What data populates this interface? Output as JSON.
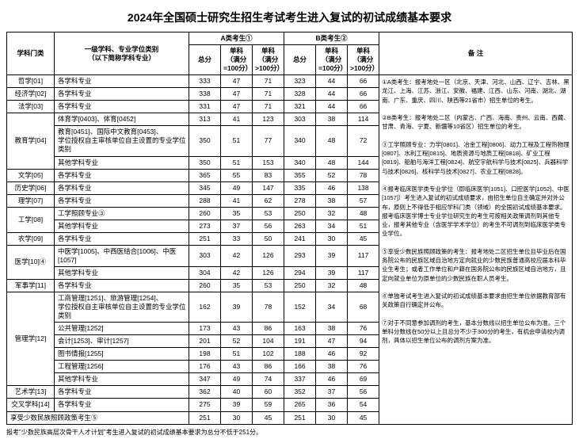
{
  "title": "2024年全国硕士研究生招生考试考生进入复试的初试成绩基本要求",
  "headers": {
    "col1": "学科门类",
    "col2": "一级学科、专业学位类别\n（以下简称学科专业）",
    "groupA": "A类考生①",
    "groupB": "B类考生②",
    "notes": "备  注",
    "total": "总分",
    "single1": "单科\n（满分=100分）",
    "single2": "单科\n（满分>100分）"
  },
  "rows": [
    {
      "cat": "哲学[01]",
      "sub": "各学科专业",
      "a": [
        333,
        47,
        71
      ],
      "b": [
        323,
        44,
        66
      ]
    },
    {
      "cat": "经济学[02]",
      "sub": "各学科专业",
      "a": [
        338,
        47,
        71
      ],
      "b": [
        328,
        44,
        66
      ]
    },
    {
      "cat": "法学[03]",
      "sub": "各学科专业",
      "a": [
        331,
        47,
        71
      ],
      "b": [
        321,
        44,
        66
      ]
    },
    {
      "cat": "教育学[04]",
      "sub": "体育学[0403]、体育[0452]",
      "a": [
        313,
        41,
        123
      ],
      "b": [
        303,
        38,
        114
      ],
      "rowspan": 3
    },
    {
      "sub": "教育[0451]、国际中文教育[0453]、\n学位授权自主审核单位自主设置的专业学位类别",
      "a": [
        350,
        51,
        77
      ],
      "b": [
        340,
        48,
        72
      ]
    },
    {
      "sub": "其他学科专业",
      "a": [
        350,
        51,
        153
      ],
      "b": [
        340,
        48,
        144
      ]
    },
    {
      "cat": "文学[05]",
      "sub": "各学科专业",
      "a": [
        365,
        55,
        83
      ],
      "b": [
        355,
        52,
        78
      ]
    },
    {
      "cat": "历史学[06]",
      "sub": "各学科专业",
      "a": [
        345,
        49,
        147
      ],
      "b": [
        335,
        46,
        138
      ]
    },
    {
      "cat": "理学[07]",
      "sub": "各学科专业",
      "a": [
        288,
        41,
        62
      ],
      "b": [
        278,
        38,
        57
      ]
    },
    {
      "cat": "工学[08]",
      "sub": "工学照顾专业③",
      "a": [
        260,
        35,
        53
      ],
      "b": [
        250,
        32,
        48
      ],
      "rowspan": 2
    },
    {
      "sub": "其他学科专业",
      "a": [
        273,
        37,
        56
      ],
      "b": [
        263,
        34,
        51
      ]
    },
    {
      "cat": "农学[09]",
      "sub": "各学科专业",
      "a": [
        251,
        33,
        50
      ],
      "b": [
        241,
        30,
        45
      ]
    },
    {
      "cat": "医学[10]④",
      "sub": "中医学[1005]、中西医结合[1006]、中医[1057]",
      "a": [
        303,
        42,
        126
      ],
      "b": [
        293,
        39,
        117
      ],
      "rowspan": 2
    },
    {
      "sub": "其他学科专业",
      "a": [
        304,
        42,
        126
      ],
      "b": [
        294,
        39,
        117
      ]
    },
    {
      "cat": "军事学[11]",
      "sub": "各学科专业",
      "a": [
        260,
        35,
        53
      ],
      "b": [
        250,
        32,
        48
      ]
    },
    {
      "cat": "管理学[12]",
      "sub": "工商管理[1251]、旅游管理[1254]、\n学位授权自主审核单位自主设置的专业学位类别",
      "a": [
        162,
        39,
        78
      ],
      "b": [
        152,
        34,
        68
      ],
      "rowspan": 5
    },
    {
      "sub": "公共管理[1252]",
      "a": [
        173,
        43,
        86
      ],
      "b": [
        163,
        38,
        76
      ]
    },
    {
      "sub": "会计[1253]、审计[1257]",
      "a": [
        201,
        52,
        104
      ],
      "b": [
        191,
        47,
        94
      ]
    },
    {
      "sub": "图书情报[1255]",
      "a": [
        198,
        51,
        102
      ],
      "b": [
        188,
        46,
        92
      ]
    },
    {
      "sub": "工程管理[1256]",
      "a": [
        176,
        43,
        86
      ],
      "b": [
        166,
        38,
        76
      ]
    },
    {
      "sub": "其他学科专业",
      "a": [
        347,
        49,
        74
      ],
      "b": [
        337,
        46,
        69
      ],
      "extra": true
    },
    {
      "cat": "艺术学[13]",
      "sub": "各学科专业",
      "a": [
        362,
        40,
        60
      ],
      "b": [
        352,
        37,
        56
      ]
    },
    {
      "cat": "交叉学科[14]",
      "sub": "各学科专业",
      "a": [
        275,
        39,
        59
      ],
      "b": [
        265,
        36,
        54
      ]
    },
    {
      "cat": "享受少数民族照顾政策考生⑤",
      "sub": "",
      "a": [
        251,
        30,
        45
      ],
      "b": [
        251,
        30,
        45
      ],
      "merge": true
    }
  ],
  "notes_text": "①A类考生：报考地处一区（北京、天津、河北、山西、辽宁、吉林、黑龙江、上海、江苏、浙江、安徽、福建、江西、山东、河南、湖北、湖南、广东、重庆、四川、陕西等21省市）招生单位的考生。\n\n②B类考生：报考地处二区（内蒙古、广西、海南、贵州、云南、西藏、甘肃、青海、宁夏、新疆等10省区）招生单位的考生。\n\n③工学照顾专业：力学[0801]、冶金工程[0806]、动力工程及工程热物理[0807]、水利工程[0815]、地质资源与地质工程[0818]、矿业工程[0819]、船舶与海洋工程[0824]、航空宇航科学与技术[0825]、兵器科学与技术[0826]、核科学与技术[0827]、农业工程[0828]。\n\n④报考临床医学类专业学位（即临床医学[1051]、口腔医学[1052]、中医[1057]）考生进入复试的初试成绩要求，由招生单位自主确定并对外公布，原则上不得低于相应学科门类（领域）的全国初试成绩基本要求。报考临床医学博士专业学位研究生的考生可按相关政策调剂到其他专业，报考其他专业（含医学学术学位）的考生不可调剂到临床医学类专业学位。\n\n⑤享受少数民族照顾政策的考生：报考地处二区招生单位且毕业后在国务院公布的民族区域自治地方定向就业的少数民族普通高校应届本科毕业生考生；或者工作单位和户籍在国务院公布的民族区域自治地方，且定向就业单位为原单位的少数民族在职人员考生。\n\n⑥单独考试考生进入复试的初试成绩基本要求由招生单位依据教育部有关政策自行确定并公布。\n\n⑦对于不同意参加调剂的考生，基本分数线以招生单位公布为准。三个单科分数线在50分以上且总分不少于300分的考生，有机会申请校内调剂，具体以招生单位公布的调剂方案为准。",
  "footnote": "报考\"少数民族高层次骨干人才计划\"考生进入复试的初试成绩基本要求为总分不低于251分。"
}
